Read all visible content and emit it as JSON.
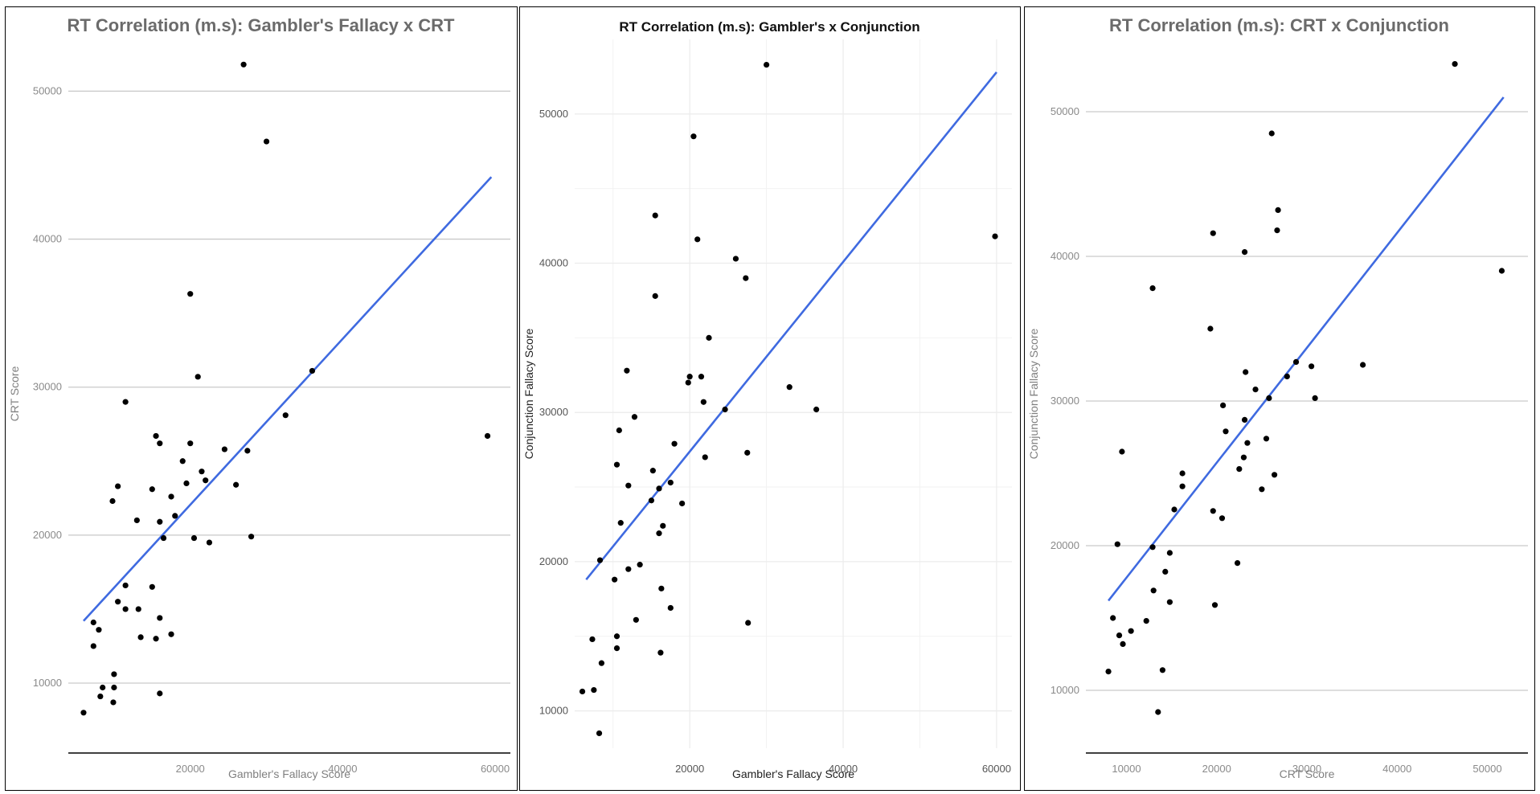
{
  "chart_data": [
    {
      "type": "scatter",
      "title": "RT Correlation (m.s): Gambler's Fallacy x CRT",
      "xlabel": "Gambler's Fallacy Score",
      "ylabel": "CRT Score",
      "xlim": [
        4000,
        62000
      ],
      "ylim": [
        5600,
        53500
      ],
      "xticks": [
        20000,
        40000,
        60000
      ],
      "yticks": [
        10000,
        20000,
        30000,
        40000,
        50000
      ],
      "trend": {
        "x0": 6000,
        "y0": 14200,
        "x1": 59500,
        "y1": 44200
      },
      "points": [
        [
          6000,
          8000
        ],
        [
          7300,
          12500
        ],
        [
          7300,
          14100
        ],
        [
          8000,
          13600
        ],
        [
          8200,
          9100
        ],
        [
          8500,
          9700
        ],
        [
          10000,
          10600
        ],
        [
          10000,
          9700
        ],
        [
          9900,
          8700
        ],
        [
          9800,
          22300
        ],
        [
          10500,
          23300
        ],
        [
          10500,
          15500
        ],
        [
          11500,
          29000
        ],
        [
          11500,
          16600
        ],
        [
          11500,
          15000
        ],
        [
          13000,
          21000
        ],
        [
          13200,
          15000
        ],
        [
          13500,
          13100
        ],
        [
          15000,
          16500
        ],
        [
          15000,
          23100
        ],
        [
          15500,
          26700
        ],
        [
          15500,
          13000
        ],
        [
          16000,
          26200
        ],
        [
          16000,
          20900
        ],
        [
          16000,
          14400
        ],
        [
          16000,
          9300
        ],
        [
          16500,
          19800
        ],
        [
          17500,
          22600
        ],
        [
          17500,
          13300
        ],
        [
          18000,
          21300
        ],
        [
          19000,
          25000
        ],
        [
          19500,
          23500
        ],
        [
          20000,
          26200
        ],
        [
          20000,
          36300
        ],
        [
          20500,
          19800
        ],
        [
          21000,
          30700
        ],
        [
          21500,
          24300
        ],
        [
          22000,
          23700
        ],
        [
          22500,
          19500
        ],
        [
          24500,
          25800
        ],
        [
          26000,
          23400
        ],
        [
          27000,
          51800
        ],
        [
          27500,
          25700
        ],
        [
          28000,
          19900
        ],
        [
          30000,
          46600
        ],
        [
          32500,
          28100
        ],
        [
          36000,
          31100
        ],
        [
          59000,
          26700
        ]
      ]
    },
    {
      "type": "scatter",
      "title": "RT Correlation (m.s): Gambler's x Conjunction",
      "xlabel": "Gambler's Fallacy Score",
      "ylabel": "Conjunction Fallacy Score",
      "xlim": [
        5000,
        62000
      ],
      "ylim": [
        7500,
        55000
      ],
      "xticks": [
        20000,
        40000,
        60000
      ],
      "yticks": [
        10000,
        20000,
        30000,
        40000,
        50000
      ],
      "trend": {
        "x0": 6500,
        "y0": 18800,
        "x1": 60000,
        "y1": 52800
      },
      "points": [
        [
          6000,
          11300
        ],
        [
          7300,
          14800
        ],
        [
          7500,
          11400
        ],
        [
          8200,
          8500
        ],
        [
          8300,
          20100
        ],
        [
          8500,
          13200
        ],
        [
          10200,
          18800
        ],
        [
          10500,
          15000
        ],
        [
          10500,
          14200
        ],
        [
          10500,
          26500
        ],
        [
          10800,
          28800
        ],
        [
          11000,
          22600
        ],
        [
          11800,
          32800
        ],
        [
          12000,
          19500
        ],
        [
          12000,
          25100
        ],
        [
          12800,
          29700
        ],
        [
          13000,
          16100
        ],
        [
          13500,
          19800
        ],
        [
          15000,
          24100
        ],
        [
          15200,
          26100
        ],
        [
          15500,
          43200
        ],
        [
          15500,
          37800
        ],
        [
          16000,
          24900
        ],
        [
          16000,
          21900
        ],
        [
          16200,
          13900
        ],
        [
          16300,
          18200
        ],
        [
          16500,
          22400
        ],
        [
          17500,
          25300
        ],
        [
          17500,
          16900
        ],
        [
          18000,
          27900
        ],
        [
          19000,
          23900
        ],
        [
          19800,
          32000
        ],
        [
          20000,
          32400
        ],
        [
          20500,
          48500
        ],
        [
          21000,
          41600
        ],
        [
          21500,
          32400
        ],
        [
          21800,
          30700
        ],
        [
          22000,
          27000
        ],
        [
          22500,
          35000
        ],
        [
          24600,
          30200
        ],
        [
          26000,
          40300
        ],
        [
          27300,
          39000
        ],
        [
          27500,
          27300
        ],
        [
          27600,
          15900
        ],
        [
          30000,
          53300
        ],
        [
          33000,
          31700
        ],
        [
          36500,
          30200
        ],
        [
          59800,
          41800
        ]
      ]
    },
    {
      "type": "scatter",
      "title": "RT Correlation (m.s): CRT x Conjunction",
      "xlabel": "CRT Score",
      "ylabel": "Conjunction Fallacy Score",
      "xlim": [
        5500,
        54500
      ],
      "ylim": [
        6000,
        55000
      ],
      "xticks": [
        10000,
        20000,
        30000,
        40000,
        50000
      ],
      "yticks": [
        10000,
        20000,
        30000,
        40000,
        50000
      ],
      "trend": {
        "x0": 8000,
        "y0": 16200,
        "x1": 51800,
        "y1": 51000
      },
      "points": [
        [
          8000,
          11300
        ],
        [
          8500,
          15000
        ],
        [
          9000,
          20100
        ],
        [
          9200,
          13800
        ],
        [
          9500,
          26500
        ],
        [
          9600,
          13200
        ],
        [
          10500,
          14100
        ],
        [
          12200,
          14800
        ],
        [
          12900,
          37800
        ],
        [
          12900,
          19900
        ],
        [
          13000,
          16900
        ],
        [
          13500,
          8500
        ],
        [
          14000,
          11400
        ],
        [
          14300,
          18200
        ],
        [
          14800,
          16100
        ],
        [
          14800,
          19500
        ],
        [
          15300,
          22500
        ],
        [
          16200,
          25000
        ],
        [
          16200,
          24100
        ],
        [
          19300,
          35000
        ],
        [
          19600,
          41600
        ],
        [
          19600,
          22400
        ],
        [
          19800,
          15900
        ],
        [
          20600,
          21900
        ],
        [
          20700,
          29700
        ],
        [
          21000,
          27900
        ],
        [
          22300,
          18800
        ],
        [
          22500,
          25300
        ],
        [
          23000,
          26100
        ],
        [
          23100,
          40300
        ],
        [
          23100,
          28700
        ],
        [
          23200,
          32000
        ],
        [
          23400,
          27100
        ],
        [
          24300,
          30800
        ],
        [
          25000,
          23900
        ],
        [
          25800,
          30200
        ],
        [
          25500,
          27400
        ],
        [
          26100,
          48500
        ],
        [
          26400,
          24900
        ],
        [
          26700,
          41800
        ],
        [
          26800,
          43200
        ],
        [
          27800,
          31700
        ],
        [
          28800,
          32700
        ],
        [
          30500,
          32400
        ],
        [
          30900,
          30200
        ],
        [
          36200,
          32500
        ],
        [
          46400,
          53300
        ],
        [
          51600,
          39000
        ]
      ]
    }
  ]
}
